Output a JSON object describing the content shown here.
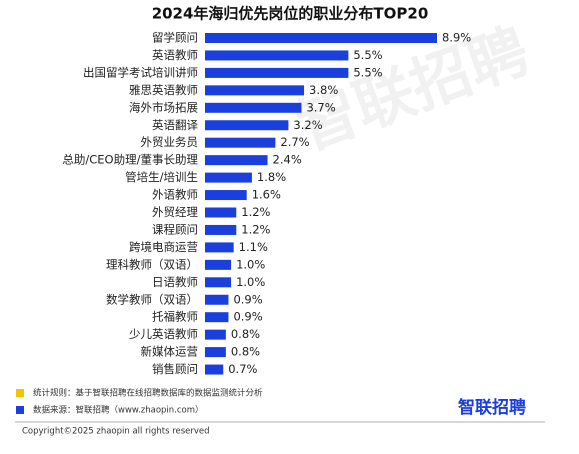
{
  "chart_data": {
    "type": "bar",
    "orientation": "horizontal",
    "title": "2024年海归优先岗位的职业分布TOP20",
    "categories": [
      "留学顾问",
      "英语教师",
      "出国留学考试培训讲师",
      "雅思英语教师",
      "海外市场拓展",
      "英语翻译",
      "外贸业务员",
      "总助/CEO助理/董事长助理",
      "管培生/培训生",
      "外语教师",
      "外贸经理",
      "课程顾问",
      "跨境电商运营",
      "理科教师（双语）",
      "日语教师",
      "数学教师（双语）",
      "托福教师",
      "少儿英语教师",
      "新媒体运营",
      "销售顾问"
    ],
    "values": [
      8.9,
      5.5,
      5.5,
      3.8,
      3.7,
      3.2,
      2.7,
      2.4,
      1.8,
      1.6,
      1.2,
      1.2,
      1.1,
      1.0,
      1.0,
      0.9,
      0.9,
      0.8,
      0.8,
      0.7
    ],
    "value_labels": [
      "8.9%",
      "5.5%",
      "5.5%",
      "3.8%",
      "3.7%",
      "3.2%",
      "2.7%",
      "2.4%",
      "1.8%",
      "1.6%",
      "1.2%",
      "1.2%",
      "1.1%",
      "1.0%",
      "1.0%",
      "0.9%",
      "0.9%",
      "0.8%",
      "0.8%",
      "0.7%"
    ],
    "color": "#1b3fdc"
  },
  "notes": [
    {
      "text": "统计规则：基于智联招聘在线招聘数据库的数据监测统计分析",
      "color": "#f5c400"
    },
    {
      "text": "数据来源：智联招聘（www.zhaopin.com）",
      "color": "#1b3fdc"
    }
  ],
  "logo": "智联招聘",
  "watermark": "智联招聘",
  "copyright": "Copyright©2025 zhaopin all rights reserved"
}
